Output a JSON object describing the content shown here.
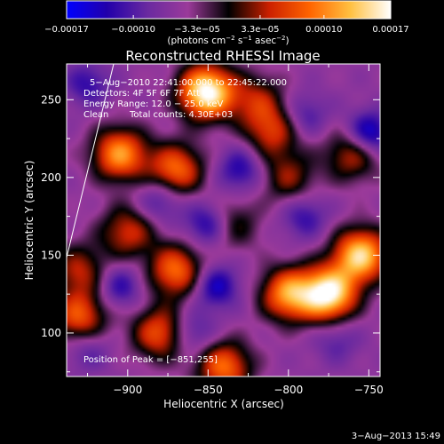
{
  "chart_data": {
    "type": "heatmap",
    "title": "Reconstructed RHESSI Image",
    "xlabel": "Heliocentric X (arcsec)",
    "ylabel": "Heliocentric Y (arcsec)",
    "xlim": [
      -938,
      -743
    ],
    "ylim": [
      72,
      273
    ],
    "x_ticks": [
      -900,
      -850,
      -800,
      -750
    ],
    "x_tick_labels": [
      "−900",
      "−850",
      "−800",
      "−750"
    ],
    "y_ticks": [
      100,
      150,
      200,
      250
    ],
    "y_tick_labels": [
      "100",
      "150",
      "200",
      "250"
    ],
    "colorbar": {
      "range": [
        -0.00017,
        0.00017
      ],
      "ticks": [
        -0.00017,
        -0.0001,
        -3.3e-05,
        3.3e-05,
        0.0001,
        0.00017
      ],
      "tick_labels": [
        "−0.00017",
        "−0.00010",
        "−3.3e−05",
        "3.3e−05",
        "0.00010",
        "0.00017"
      ],
      "colors": [
        "#0000ff",
        "#2200aa",
        "#6a2aa0",
        "#9b3a9a",
        "#000000",
        "#cc2000",
        "#ff6400",
        "#ffc040",
        "#ffffff"
      ]
    },
    "annotations": {
      "time": "5−Aug−2010 22:41:00.000 to 22:45:22.000",
      "detectors": "Detectors: 4F 5F 6F 7F  Att 0",
      "energy": "Energy Range: 12.0 − 25.0 keV",
      "method": "Clean",
      "counts": "Total counts: 4.30E+03",
      "peak": "Position of Peak = [−851,255]"
    },
    "peak": {
      "x": -851,
      "y": 255
    },
    "grid": false,
    "hot_regions": [
      {
        "x": -851,
        "y": 255,
        "level": 1.0
      },
      {
        "x": -905,
        "y": 215,
        "level": 0.7
      },
      {
        "x": -870,
        "y": 205,
        "level": 0.6
      },
      {
        "x": -760,
        "y": 215,
        "level": 0.45
      },
      {
        "x": -755,
        "y": 150,
        "level": 0.85
      },
      {
        "x": -775,
        "y": 125,
        "level": 0.95
      },
      {
        "x": -800,
        "y": 125,
        "level": 0.7
      },
      {
        "x": -870,
        "y": 140,
        "level": 0.6
      },
      {
        "x": -900,
        "y": 165,
        "level": 0.45
      },
      {
        "x": -930,
        "y": 110,
        "level": 0.55
      },
      {
        "x": -930,
        "y": 140,
        "level": 0.4
      },
      {
        "x": -810,
        "y": 230,
        "level": 0.45
      },
      {
        "x": -800,
        "y": 200,
        "level": 0.35
      },
      {
        "x": -835,
        "y": 170,
        "level": 0.3
      },
      {
        "x": -880,
        "y": 100,
        "level": 0.55
      },
      {
        "x": -840,
        "y": 78,
        "level": 0.6
      },
      {
        "x": -820,
        "y": 250,
        "level": 0.35
      }
    ],
    "cold_regions": [
      {
        "x": -750,
        "y": 228,
        "level": 0.9
      },
      {
        "x": -850,
        "y": 170,
        "level": 0.7
      },
      {
        "x": -845,
        "y": 130,
        "level": 0.7
      },
      {
        "x": -830,
        "y": 205,
        "level": 0.6
      },
      {
        "x": -905,
        "y": 130,
        "level": 0.55
      },
      {
        "x": -790,
        "y": 175,
        "level": 0.5
      },
      {
        "x": -880,
        "y": 185,
        "level": 0.5
      },
      {
        "x": -860,
        "y": 100,
        "level": 0.5
      },
      {
        "x": -790,
        "y": 240,
        "level": 0.45
      },
      {
        "x": -770,
        "y": 95,
        "level": 0.35
      },
      {
        "x": -925,
        "y": 260,
        "level": 0.5
      },
      {
        "x": -925,
        "y": 90,
        "level": 0.4
      }
    ]
  },
  "footer": {
    "date": "3−Aug−2013 15:49"
  }
}
